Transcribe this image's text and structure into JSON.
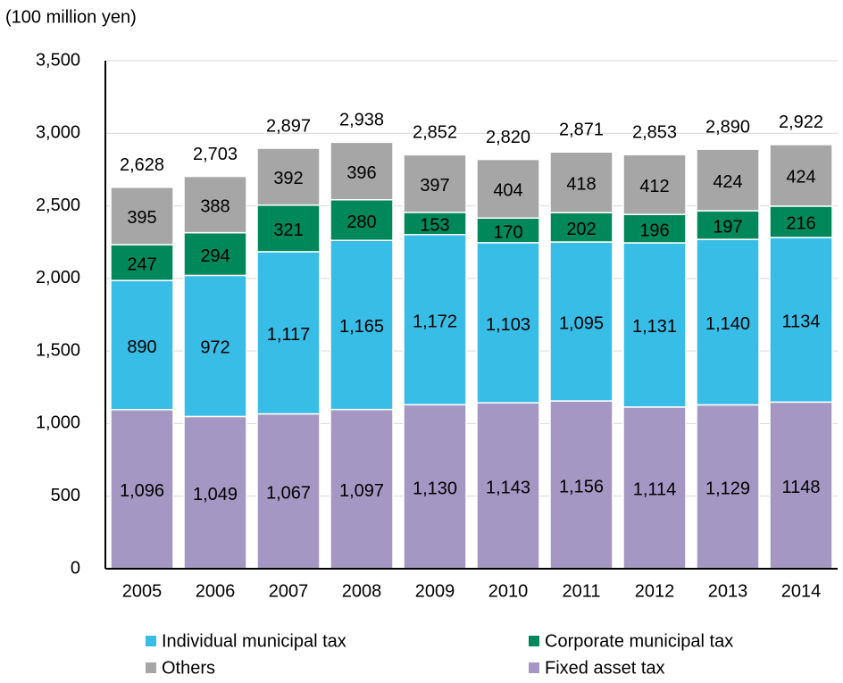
{
  "chart_data": {
    "type": "stacked_bar",
    "y_axis_label": "(100 million yen)",
    "categories": [
      "2005",
      "2006",
      "2007",
      "2008",
      "2009",
      "2010",
      "2011",
      "2012",
      "2013",
      "2014"
    ],
    "series": [
      {
        "name": "Fixed asset tax",
        "color": "#a597c4",
        "values": [
          1096,
          1049,
          1067,
          1097,
          1130,
          1143,
          1156,
          1114,
          1129,
          1148
        ],
        "value_labels": [
          "1,096",
          "1,049",
          "1,067",
          "1,097",
          "1,130",
          "1,143",
          "1,156",
          "1,114",
          "1,129",
          "1148"
        ]
      },
      {
        "name": "Individual municipal tax",
        "color": "#38bde6",
        "values": [
          890,
          972,
          1117,
          1165,
          1172,
          1103,
          1095,
          1131,
          1140,
          1134
        ],
        "value_labels": [
          "890",
          "972",
          "1,117",
          "1,165",
          "1,172",
          "1,103",
          "1,095",
          "1,131",
          "1,140",
          "1134"
        ]
      },
      {
        "name": "Corporate municipal tax",
        "color": "#00875a",
        "values": [
          247,
          294,
          321,
          280,
          153,
          170,
          202,
          196,
          197,
          216
        ]
      },
      {
        "name": "Others",
        "color": "#a6a6a6",
        "values": [
          395,
          388,
          392,
          396,
          397,
          404,
          418,
          412,
          424,
          424
        ]
      }
    ],
    "totals": {
      "values": [
        2628,
        2703,
        2897,
        2938,
        2852,
        2820,
        2871,
        2853,
        2890,
        2922
      ],
      "value_labels": [
        "2,628",
        "2,703",
        "2,897",
        "2,938",
        "2,852",
        "2,820",
        "2,871",
        "2,853",
        "2,890",
        "2,922"
      ]
    },
    "ylim": [
      0,
      3500
    ],
    "yticks": [
      0,
      500,
      {
        "value": 1000,
        "label": "1,000"
      },
      {
        "value": 1500,
        "label": "1,500"
      },
      {
        "value": 2000,
        "label": "2,000"
      },
      {
        "value": 2500,
        "label": "2,500"
      },
      {
        "value": 3000,
        "label": "3,000"
      },
      {
        "value": 3500,
        "label": "3,500"
      }
    ],
    "grid": true
  }
}
